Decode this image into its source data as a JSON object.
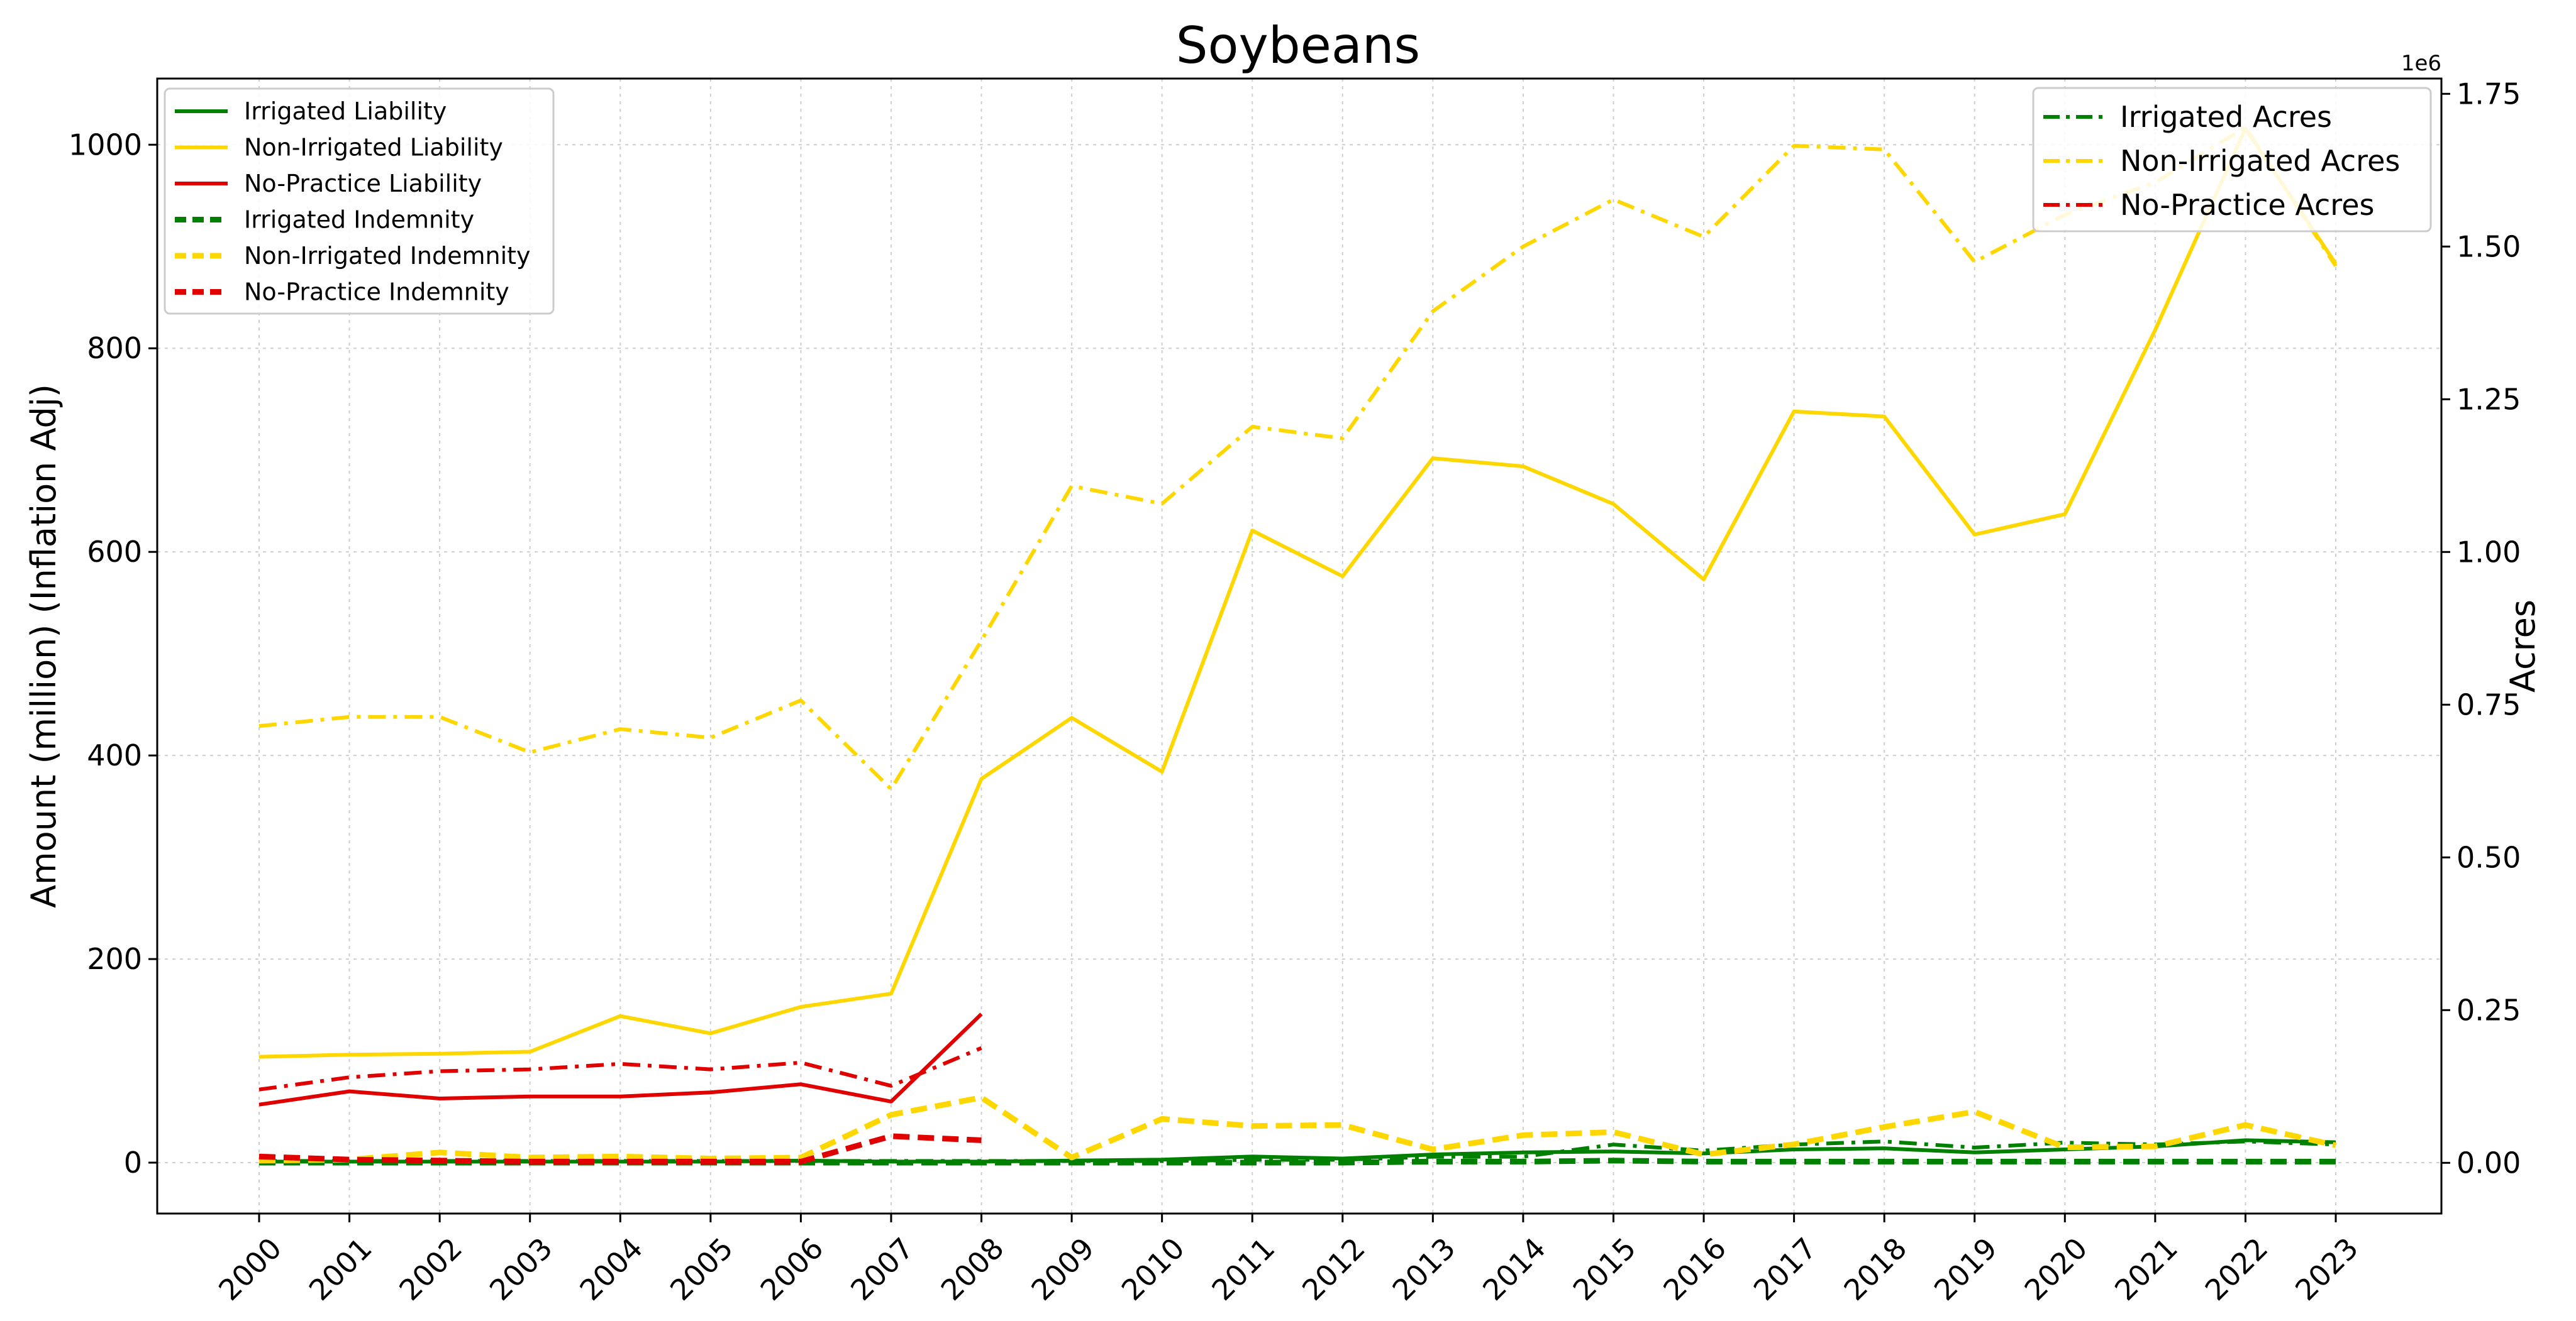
{
  "chart_data": {
    "type": "line",
    "title": "Soybeans",
    "xlabel": "",
    "ylabel": "Amount (million) (Inflation Adj)",
    "y2label": "Acres",
    "y2_offset_label": "1e6",
    "x": [
      "2000",
      "2001",
      "2002",
      "2003",
      "2004",
      "2005",
      "2006",
      "2007",
      "2008",
      "2009",
      "2010",
      "2011",
      "2012",
      "2013",
      "2014",
      "2015",
      "2016",
      "2017",
      "2018",
      "2019",
      "2020",
      "2021",
      "2022",
      "2023"
    ],
    "ylim": [
      -50,
      1065
    ],
    "y2lim": [
      -0.083,
      1.775
    ],
    "yticks": [
      0,
      200,
      400,
      600,
      800,
      1000
    ],
    "yticklabels": [
      "0",
      "200",
      "400",
      "600",
      "800",
      "1000"
    ],
    "y2ticks": [
      0,
      0.25,
      0.5,
      0.75,
      1.0,
      1.25,
      1.5,
      1.75
    ],
    "y2ticklabels": [
      "0.00",
      "0.25",
      "0.50",
      "0.75",
      "1.00",
      "1.25",
      "1.50",
      "1.75"
    ],
    "grid": true,
    "legend_left_placement": "top-left",
    "legend_right_placement": "top-right",
    "colors": {
      "irrigated": "#008000",
      "non_irrigated": "#FFD700",
      "no_practice": "#E00000"
    },
    "series": [
      {
        "name": "Irrigated Liability",
        "axis": "left",
        "style": "solid",
        "color": "#008000",
        "values": [
          1,
          1,
          1,
          1,
          1,
          1,
          2,
          1,
          1,
          2,
          3,
          6,
          4,
          8,
          10,
          11,
          9,
          13,
          14,
          10,
          13,
          16,
          22,
          20
        ]
      },
      {
        "name": "Non-Irrigated Liability",
        "axis": "left",
        "style": "solid",
        "color": "#FFD700",
        "values": [
          104,
          106,
          107,
          109,
          144,
          127,
          153,
          166,
          377,
          437,
          384,
          621,
          576,
          692,
          684,
          647,
          573,
          738,
          733,
          617,
          637,
          818,
          1016,
          883
        ]
      },
      {
        "name": "No-Practice Liability",
        "axis": "left",
        "style": "solid",
        "color": "#E00000",
        "values": [
          57,
          70,
          63,
          65,
          65,
          69,
          77,
          60,
          146,
          null,
          null,
          null,
          null,
          null,
          null,
          null,
          null,
          null,
          null,
          null,
          null,
          null,
          null,
          null
        ]
      },
      {
        "name": "Irrigated Indemnity",
        "axis": "left",
        "style": "dashed",
        "color": "#008000",
        "values": [
          0,
          0,
          0,
          0,
          0,
          0,
          0,
          0,
          0,
          0,
          0,
          0,
          0,
          1,
          1,
          2,
          1,
          1,
          1,
          1,
          1,
          1,
          1,
          1
        ]
      },
      {
        "name": "Non-Irrigated Indemnity",
        "axis": "left",
        "style": "dashed",
        "color": "#FFD700",
        "values": [
          2,
          3,
          10,
          5,
          6,
          4,
          5,
          47,
          64,
          5,
          43,
          36,
          37,
          13,
          27,
          30,
          8,
          18,
          35,
          50,
          15,
          16,
          37,
          17
        ]
      },
      {
        "name": "No-Practice Indemnity",
        "axis": "left",
        "style": "dashed",
        "color": "#E00000",
        "values": [
          6,
          3,
          2,
          1,
          1,
          1,
          1,
          26,
          22,
          null,
          null,
          null,
          null,
          null,
          null,
          null,
          null,
          null,
          null,
          null,
          null,
          null,
          null,
          null
        ]
      },
      {
        "name": "Irrigated Acres",
        "axis": "right",
        "style": "dashdot",
        "color": "#008000",
        "values": [
          0.003,
          0.003,
          0.003,
          0.003,
          0.003,
          0.003,
          0.003,
          0.003,
          0.003,
          0.003,
          0.003,
          0.005,
          0.005,
          0.01,
          0.01,
          0.03,
          0.02,
          0.03,
          0.035,
          0.025,
          0.033,
          0.03,
          0.035,
          0.03
        ]
      },
      {
        "name": "Non-Irrigated Acres",
        "axis": "right",
        "style": "dashdot",
        "color": "#FFD700",
        "values": [
          0.715,
          0.73,
          0.73,
          0.672,
          0.71,
          0.696,
          0.757,
          0.612,
          0.855,
          1.108,
          1.079,
          1.205,
          1.186,
          1.394,
          1.5,
          1.577,
          1.516,
          1.665,
          1.659,
          1.475,
          1.552,
          1.605,
          1.695,
          1.468
        ]
      },
      {
        "name": "No-Practice Acres",
        "axis": "right",
        "style": "dashdot",
        "color": "#E00000",
        "values": [
          0.12,
          0.14,
          0.15,
          0.153,
          0.162,
          0.153,
          0.164,
          0.126,
          0.188,
          null,
          null,
          null,
          null,
          null,
          null,
          null,
          null,
          null,
          null,
          null,
          null,
          null,
          null,
          null
        ]
      }
    ]
  }
}
